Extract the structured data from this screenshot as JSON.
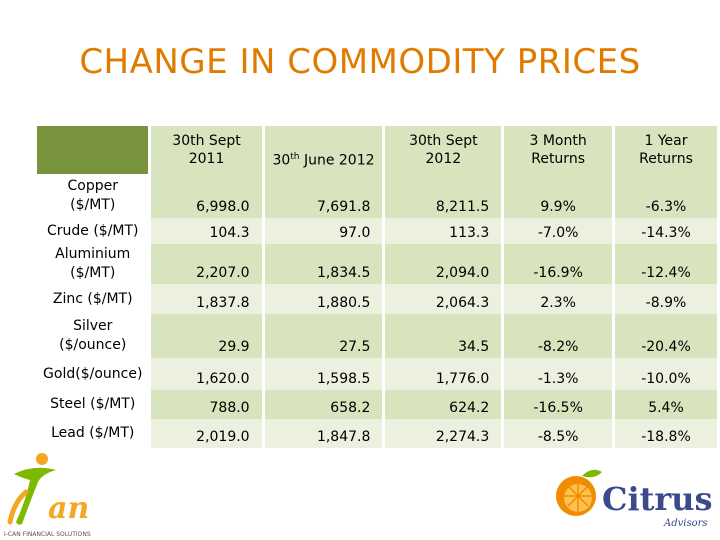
{
  "title": "CHANGE IN COMMODITY PRICES",
  "table": {
    "headers": [
      {
        "line1": "30th Sept",
        "line2": "2011"
      },
      {
        "prefix": "30",
        "sup": "th",
        "suffix": " June 2012"
      },
      {
        "line1": "30th Sept",
        "line2": "2012"
      },
      {
        "line1": "3 Month",
        "line2": "Returns"
      },
      {
        "line1": "1 Year",
        "line2": "Returns"
      }
    ],
    "rows": [
      {
        "label1": "Copper",
        "label2": "($/MT)",
        "values": [
          "6,998.0",
          "7,691.8",
          "8,211.5",
          "9.9%",
          "-6.3%"
        ]
      },
      {
        "label1": "Crude ($/MT)",
        "label2": "",
        "values": [
          "104.3",
          "97.0",
          "113.3",
          "-7.0%",
          "-14.3%"
        ]
      },
      {
        "label1": "Aluminium",
        "label2": "($/MT)",
        "values": [
          "2,207.0",
          "1,834.5",
          "2,094.0",
          "-16.9%",
          "-12.4%"
        ]
      },
      {
        "label1": "Zinc ($/MT)",
        "label2": "",
        "values": [
          "1,837.8",
          "1,880.5",
          "2,064.3",
          "2.3%",
          "-8.9%"
        ]
      },
      {
        "label1": "Silver",
        "label2": "($/ounce)",
        "values": [
          "29.9",
          "27.5",
          "34.5",
          "-8.2%",
          "-20.4%"
        ]
      },
      {
        "label1": "Gold($/ounce)",
        "label2": "",
        "values": [
          "1,620.0",
          "1,598.5",
          "1,776.0",
          "-1.3%",
          "-10.0%"
        ]
      },
      {
        "label1": "Steel ($/MT)",
        "label2": "",
        "values": [
          "788.0",
          "658.2",
          "624.2",
          "-16.5%",
          "5.4%"
        ]
      },
      {
        "label1": "Lead ($/MT)",
        "label2": "",
        "values": [
          "2,019.0",
          "1,847.8",
          "2,274.3",
          "-8.5%",
          "-18.8%"
        ]
      }
    ]
  },
  "logos": {
    "left": {
      "name": "Can",
      "tagline": "I-CAN FINANCIAL SOLUTIONS",
      "colors": [
        "#f5a623",
        "#7fb800"
      ]
    },
    "right": {
      "name": "Citrus",
      "sub": "Advisors",
      "colors": [
        "#f08c00",
        "#7fb800",
        "#3a4a8a"
      ]
    }
  },
  "colors": {
    "title": "#e07b00",
    "header_dark": "#77933c",
    "header_light": "#d7e4bd",
    "row_light": "#ebf1de"
  }
}
